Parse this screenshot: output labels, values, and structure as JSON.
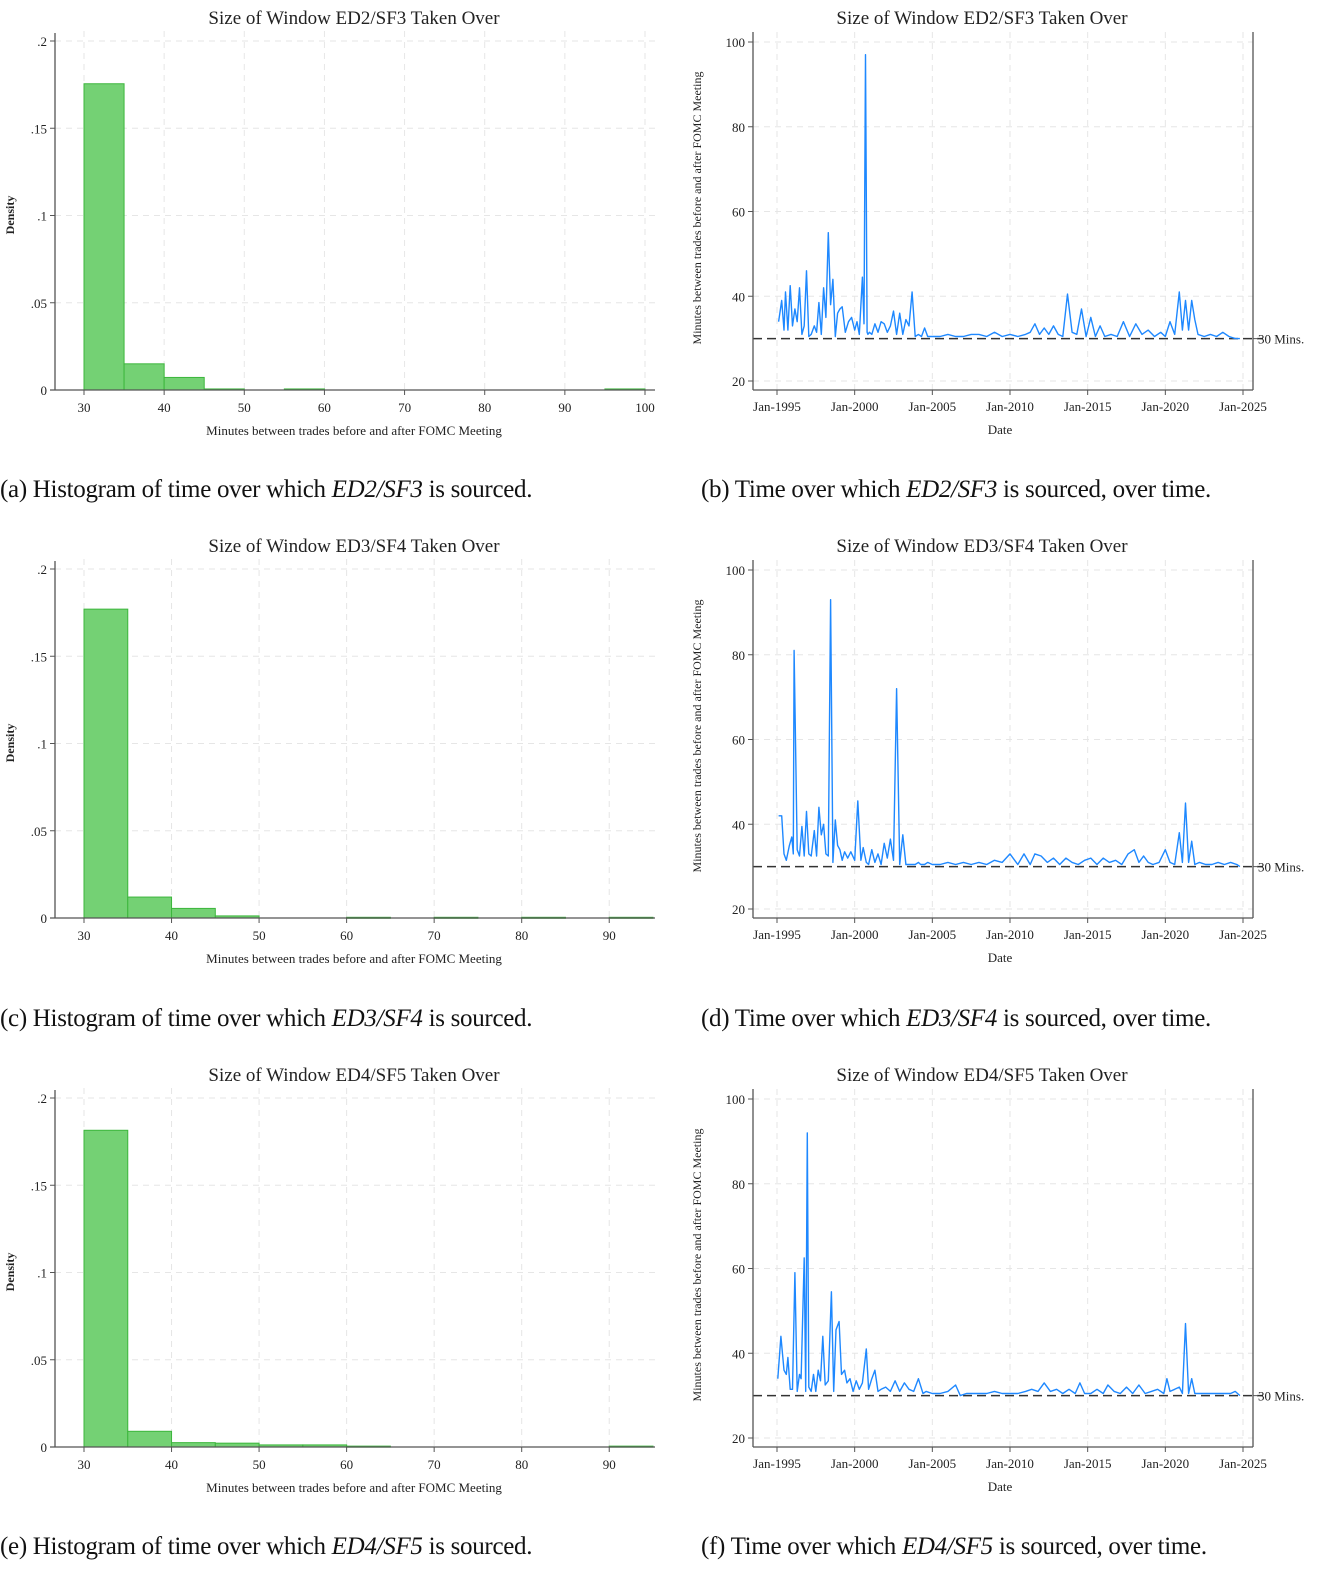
{
  "figure": {
    "captions": [
      {
        "label": "(a)",
        "pre": "Histogram of time over which ",
        "em": "ED2/SF3",
        "post": " is sourced."
      },
      {
        "label": "(b)",
        "pre": "Time over which ",
        "em": "ED2/SF3",
        "post": " is sourced, over time."
      },
      {
        "label": "(c)",
        "pre": "Histogram of time over which ",
        "em": "ED3/SF4",
        "post": " is sourced."
      },
      {
        "label": "(d)",
        "pre": "Time over which ",
        "em": "ED3/SF4",
        "post": " is sourced, over time."
      },
      {
        "label": "(e)",
        "pre": "Histogram of time over which ",
        "em": "ED4/SF5",
        "post": " is sourced."
      },
      {
        "label": "(f)",
        "pre": "Time over which ",
        "em": "ED4/SF5",
        "post": " is sourced, over time."
      }
    ],
    "colors": {
      "bar_fill": "#74d174",
      "bar_edge": "#3cb63c",
      "line": "#1e88ff",
      "ref_line": "#333333",
      "grid": "#e6e6e6",
      "axis": "#555555"
    }
  },
  "chart_data": [
    {
      "id": "a",
      "type": "bar",
      "title": "Size of Window ED2/SF3 Taken Over",
      "xlabel": "Minutes between trades before and after FOMC Meeting",
      "ylabel": "Density",
      "xlim": [
        30,
        100
      ],
      "ylim": [
        0,
        0.2
      ],
      "xticks": [
        30,
        40,
        50,
        60,
        70,
        80,
        90,
        100
      ],
      "yticks": [
        0,
        0.05,
        0.1,
        0.15,
        0.2
      ],
      "ytick_labels": [
        "0",
        ".05",
        ".1",
        ".15",
        ".2"
      ],
      "bin_width": 5,
      "bins": [
        30,
        35,
        40,
        45,
        50,
        55,
        60,
        65,
        70,
        75,
        80,
        85,
        90,
        95
      ],
      "values": [
        0.1755,
        0.015,
        0.0072,
        0.0006,
        0.0,
        0.0006,
        0.0,
        0.0,
        0.0,
        0.0,
        0.0,
        0.0,
        0.0,
        0.0006
      ],
      "grid": true
    },
    {
      "id": "b",
      "type": "line",
      "title": "Size of Window ED2/SF3 Taken Over",
      "xlabel": "Date",
      "ylabel": "Minutes between trades before and after FOMC Meeting",
      "ylim": [
        20,
        100
      ],
      "yticks": [
        20,
        40,
        60,
        80,
        100
      ],
      "xticks": [
        "Jan-1995",
        "Jan-2000",
        "Jan-2005",
        "Jan-2010",
        "Jan-2015",
        "Jan-2020",
        "Jan-2025"
      ],
      "xlim": [
        1993.5,
        2026.3
      ],
      "reference_line": {
        "y": 30,
        "label": "30 Mins.",
        "style": "dashed"
      },
      "series": [
        {
          "name": "ED2/SF3 window",
          "x": [
            1995.1,
            1995.3,
            1995.45,
            1995.55,
            1995.7,
            1995.85,
            1996.0,
            1996.15,
            1996.3,
            1996.45,
            1996.6,
            1996.75,
            1996.9,
            1997.05,
            1997.2,
            1997.4,
            1997.55,
            1997.7,
            1997.85,
            1998.0,
            1998.15,
            1998.3,
            1998.45,
            1998.6,
            1998.75,
            1998.9,
            1999.05,
            1999.2,
            1999.4,
            1999.6,
            1999.8,
            2000.0,
            2000.15,
            2000.3,
            2000.5,
            2000.6,
            2000.7,
            2000.8,
            2000.85,
            2000.95,
            2001.1,
            2001.3,
            2001.5,
            2001.7,
            2001.9,
            2002.1,
            2002.3,
            2002.5,
            2002.7,
            2002.9,
            2003.1,
            2003.3,
            2003.5,
            2003.7,
            2003.9,
            2004.1,
            2004.3,
            2004.5,
            2004.7,
            2005.0,
            2005.5,
            2006.0,
            2006.5,
            2007.0,
            2007.5,
            2008.0,
            2008.5,
            2009.0,
            2009.5,
            2010.0,
            2010.5,
            2011.0,
            2011.3,
            2011.6,
            2011.9,
            2012.2,
            2012.5,
            2012.8,
            2013.1,
            2013.4,
            2013.7,
            2014.0,
            2014.3,
            2014.6,
            2014.9,
            2015.2,
            2015.5,
            2015.8,
            2016.1,
            2016.5,
            2016.9,
            2017.3,
            2017.7,
            2018.1,
            2018.5,
            2018.9,
            2019.3,
            2019.7,
            2020.0,
            2020.3,
            2020.6,
            2020.9,
            2021.1,
            2021.3,
            2021.5,
            2021.7,
            2021.9,
            2022.1,
            2022.5,
            2022.9,
            2023.3,
            2023.7,
            2024.1,
            2024.5,
            2024.8
          ],
          "y": [
            34,
            39,
            32,
            41,
            32,
            42.5,
            33,
            37,
            34,
            42,
            31,
            33,
            46,
            30.5,
            31,
            33,
            31.5,
            38.5,
            31,
            42,
            35,
            55,
            38,
            44,
            30.5,
            36,
            37,
            37.5,
            31.5,
            34,
            35,
            32,
            34,
            31,
            44.5,
            33.5,
            97,
            31.5,
            31,
            31.5,
            31,
            33.5,
            31.5,
            34,
            33.5,
            31.5,
            33,
            36.5,
            31,
            36,
            31,
            34.5,
            33,
            41,
            30.5,
            31,
            30.5,
            32.5,
            30.5,
            30.5,
            30.5,
            31,
            30.5,
            30.5,
            31,
            31,
            30.5,
            31.5,
            30.5,
            31,
            30.5,
            31,
            31.5,
            33.5,
            31,
            32.5,
            31,
            33,
            31,
            30.5,
            40.5,
            31.5,
            31,
            37,
            30.5,
            35,
            30.5,
            33,
            30.5,
            31,
            30.5,
            34,
            30.5,
            33.5,
            31,
            32,
            30.5,
            31.5,
            30.5,
            34,
            31,
            41,
            32,
            39,
            32,
            39,
            34.5,
            31,
            30.5,
            31,
            30.5,
            31.5,
            30.5,
            30,
            30
          ]
        }
      ],
      "grid": true
    },
    {
      "id": "c",
      "type": "bar",
      "title": "Size of Window ED3/SF4 Taken Over",
      "xlabel": "Minutes between trades before and after FOMC Meeting",
      "ylabel": "Density",
      "xlim": [
        30,
        95
      ],
      "ylim": [
        0,
        0.2
      ],
      "xticks": [
        30,
        40,
        50,
        60,
        70,
        80,
        90
      ],
      "yticks": [
        0,
        0.05,
        0.1,
        0.15,
        0.2
      ],
      "ytick_labels": [
        "0",
        ".05",
        ".1",
        ".15",
        ".2"
      ],
      "bin_width": 5,
      "bins": [
        30,
        35,
        40,
        45,
        50,
        55,
        60,
        65,
        70,
        75,
        80,
        85,
        90
      ],
      "values": [
        0.177,
        0.012,
        0.0055,
        0.0012,
        0.0,
        0.0,
        0.0004,
        0.0,
        0.0004,
        0.0,
        0.0004,
        0.0,
        0.0004
      ],
      "grid": true
    },
    {
      "id": "d",
      "type": "line",
      "title": "Size of Window ED3/SF4 Taken Over",
      "xlabel": "Date",
      "ylabel": "Minutes between trades before and after FOMC Meeting",
      "ylim": [
        20,
        100
      ],
      "yticks": [
        20,
        40,
        60,
        80,
        100
      ],
      "xticks": [
        "Jan-1995",
        "Jan-2000",
        "Jan-2005",
        "Jan-2010",
        "Jan-2015",
        "Jan-2020",
        "Jan-2025"
      ],
      "xlim": [
        1993.5,
        2026.3
      ],
      "reference_line": {
        "y": 30,
        "label": "30 Mins.",
        "style": "dashed"
      },
      "series": [
        {
          "name": "ED3/SF4 window",
          "x": [
            1995.1,
            1995.3,
            1995.45,
            1995.6,
            1995.8,
            1995.95,
            1996.05,
            1996.1,
            1996.3,
            1996.45,
            1996.6,
            1996.75,
            1996.9,
            1997.05,
            1997.2,
            1997.4,
            1997.55,
            1997.7,
            1997.85,
            1998.0,
            1998.15,
            1998.3,
            1998.45,
            1998.6,
            1998.75,
            1998.9,
            1999.05,
            1999.2,
            1999.35,
            1999.55,
            1999.75,
            2000.0,
            2000.2,
            2000.4,
            2000.55,
            2000.75,
            2000.9,
            2001.1,
            2001.3,
            2001.5,
            2001.7,
            2001.9,
            2002.1,
            2002.3,
            2002.5,
            2002.7,
            2002.9,
            2003.1,
            2003.3,
            2003.5,
            2003.7,
            2003.9,
            2004.1,
            2004.25,
            2004.4,
            2004.5,
            2004.7,
            2005.0,
            2005.5,
            2006.0,
            2006.5,
            2007.0,
            2007.5,
            2008.0,
            2008.5,
            2009.0,
            2009.5,
            2010.0,
            2010.5,
            2010.9,
            2011.3,
            2011.6,
            2012.0,
            2012.4,
            2012.8,
            2013.2,
            2013.6,
            2014.0,
            2014.4,
            2014.8,
            2015.2,
            2015.6,
            2016.0,
            2016.4,
            2016.8,
            2017.2,
            2017.6,
            2018.0,
            2018.3,
            2018.6,
            2018.9,
            2019.2,
            2019.6,
            2020.0,
            2020.3,
            2020.6,
            2020.9,
            2021.1,
            2021.3,
            2021.5,
            2021.7,
            2021.9,
            2022.2,
            2022.6,
            2023.0,
            2023.4,
            2023.8,
            2024.2,
            2024.6,
            2024.8
          ],
          "y": [
            42,
            42,
            33,
            31.5,
            35,
            37,
            33,
            81,
            34,
            32.5,
            39.5,
            32.5,
            43,
            33,
            32.5,
            38.5,
            32.5,
            44,
            37.5,
            40,
            33,
            32.5,
            93,
            31,
            41,
            35,
            34,
            31.5,
            33.5,
            32,
            33.5,
            31.5,
            45.5,
            31.5,
            34.5,
            31,
            30.5,
            34,
            31,
            33,
            30.5,
            35.5,
            32,
            36.5,
            31.5,
            72,
            30.5,
            37.5,
            30.5,
            30.5,
            30.5,
            30.5,
            31,
            30.5,
            30.5,
            30.5,
            31,
            30.5,
            30.5,
            31,
            30.5,
            31,
            30.5,
            31,
            30.5,
            31.5,
            31,
            33,
            30.5,
            33,
            30.5,
            33,
            32.5,
            31,
            32,
            30.5,
            32,
            31,
            30.5,
            31.5,
            32,
            30.5,
            32,
            31,
            31.5,
            30.5,
            33,
            34,
            31,
            32.5,
            31,
            30.5,
            31,
            34,
            31,
            30.5,
            38,
            31,
            45,
            31,
            36,
            30.5,
            31,
            30.5,
            30.5,
            31,
            30.5,
            31,
            30.5,
            30
          ]
        }
      ],
      "grid": true
    },
    {
      "id": "e",
      "type": "bar",
      "title": "Size of Window ED4/SF5 Taken Over",
      "xlabel": "Minutes between trades before and after FOMC Meeting",
      "ylabel": "Density",
      "xlim": [
        30,
        95
      ],
      "ylim": [
        0,
        0.2
      ],
      "xticks": [
        30,
        40,
        50,
        60,
        70,
        80,
        90
      ],
      "yticks": [
        0,
        0.05,
        0.1,
        0.15,
        0.2
      ],
      "ytick_labels": [
        "0",
        ".05",
        ".1",
        ".15",
        ".2"
      ],
      "bin_width": 5,
      "bins": [
        30,
        35,
        40,
        45,
        50,
        55,
        60,
        65,
        70,
        75,
        80,
        85,
        90
      ],
      "values": [
        0.1815,
        0.009,
        0.0025,
        0.0022,
        0.0012,
        0.0012,
        0.0005,
        0.0,
        0.0,
        0.0,
        0.0,
        0.0,
        0.0005
      ],
      "grid": true
    },
    {
      "id": "f",
      "type": "line",
      "title": "Size of Window ED4/SF5 Taken Over",
      "xlabel": "Date",
      "ylabel": "Minutes between trades before and after FOMC Meeting",
      "ylim": [
        20,
        100
      ],
      "yticks": [
        20,
        40,
        60,
        80,
        100
      ],
      "xticks": [
        "Jan-1995",
        "Jan-2000",
        "Jan-2005",
        "Jan-2010",
        "Jan-2015",
        "Jan-2020",
        "Jan-2025"
      ],
      "xlim": [
        1993.5,
        2026.3
      ],
      "reference_line": {
        "y": 30,
        "label": "30 Mins.",
        "style": "dashed"
      },
      "series": [
        {
          "name": "ED4/SF5 window",
          "x": [
            1995.05,
            1995.25,
            1995.45,
            1995.6,
            1995.7,
            1995.85,
            1996.0,
            1996.15,
            1996.3,
            1996.45,
            1996.55,
            1996.75,
            1996.85,
            1996.95,
            1997.05,
            1997.2,
            1997.35,
            1997.5,
            1997.65,
            1997.8,
            1997.95,
            1998.1,
            1998.3,
            1998.5,
            1998.65,
            1998.8,
            1999.0,
            1999.15,
            1999.35,
            1999.5,
            1999.7,
            1999.9,
            2000.1,
            2000.3,
            2000.5,
            2000.75,
            2000.9,
            2001.1,
            2001.3,
            2001.5,
            2001.7,
            2002.0,
            2002.3,
            2002.6,
            2002.9,
            2003.2,
            2003.5,
            2003.8,
            2004.1,
            2004.4,
            2004.6,
            2005.0,
            2005.5,
            2006.0,
            2006.5,
            2006.8,
            2007.2,
            2007.6,
            2008.0,
            2008.5,
            2009.0,
            2009.5,
            2010.0,
            2010.5,
            2011.0,
            2011.4,
            2011.8,
            2012.2,
            2012.6,
            2013.0,
            2013.4,
            2013.8,
            2014.2,
            2014.5,
            2014.8,
            2015.2,
            2015.6,
            2016.0,
            2016.3,
            2016.7,
            2017.1,
            2017.5,
            2017.9,
            2018.3,
            2018.7,
            2019.1,
            2019.5,
            2019.9,
            2020.1,
            2020.3,
            2020.6,
            2020.9,
            2021.1,
            2021.3,
            2021.5,
            2021.7,
            2021.9,
            2022.2,
            2022.6,
            2023.0,
            2023.4,
            2023.8,
            2024.2,
            2024.5,
            2024.8
          ],
          "y": [
            34,
            44,
            36,
            35,
            39,
            31.5,
            31.5,
            59,
            31,
            35,
            34,
            62.5,
            31,
            92,
            32,
            31,
            35,
            31,
            36,
            33.5,
            44,
            32.5,
            33.5,
            54.5,
            31,
            45.5,
            47.5,
            35,
            36,
            33,
            34,
            31,
            33.5,
            31.5,
            33,
            41,
            31.5,
            34,
            36,
            31,
            31.5,
            32,
            31,
            33.5,
            31,
            33,
            31.5,
            31,
            34,
            30.5,
            31,
            30.5,
            30.5,
            31,
            32.5,
            30,
            30.5,
            30.5,
            30.5,
            30.5,
            31,
            30.5,
            30.5,
            30.5,
            31,
            31.5,
            31,
            33,
            31,
            31.5,
            30.5,
            31.5,
            30.5,
            33,
            30.5,
            30.5,
            31.5,
            30.5,
            32.5,
            31,
            30.5,
            32,
            30.5,
            32.5,
            30.5,
            31,
            31.5,
            30.5,
            34,
            31,
            31.5,
            32,
            30.5,
            47,
            30.5,
            34,
            30.5,
            30.5,
            30.5,
            30.5,
            30.5,
            30.5,
            30.5,
            31,
            30
          ]
        }
      ],
      "grid": true
    }
  ]
}
